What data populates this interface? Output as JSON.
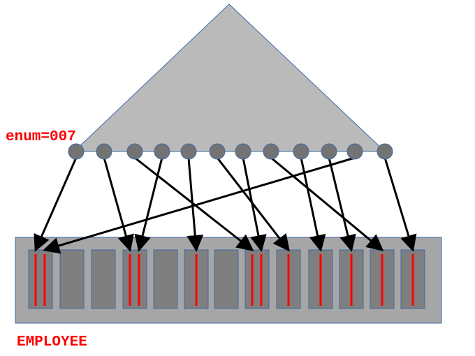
{
  "labels": {
    "key_label": "enum=007",
    "table_label": "EMPLOYEE"
  },
  "leaf_count": 12,
  "page_count": 13,
  "pages": [
    {
      "entries": 2
    },
    {
      "entries": 0
    },
    {
      "entries": 0
    },
    {
      "entries": 2
    },
    {
      "entries": 0
    },
    {
      "entries": 1
    },
    {
      "entries": 0
    },
    {
      "entries": 2
    },
    {
      "entries": 1
    },
    {
      "entries": 1
    },
    {
      "entries": 1
    },
    {
      "entries": 1
    },
    {
      "entries": 1
    }
  ],
  "pointers": [
    {
      "from_leaf": 0,
      "to_page": 0,
      "mark": 0
    },
    {
      "from_leaf": 1,
      "to_page": 3,
      "mark": 0
    },
    {
      "from_leaf": 2,
      "to_page": 7,
      "mark": 0
    },
    {
      "from_leaf": 3,
      "to_page": 3,
      "mark": 1
    },
    {
      "from_leaf": 4,
      "to_page": 5,
      "mark": 0
    },
    {
      "from_leaf": 5,
      "to_page": 8,
      "mark": 0
    },
    {
      "from_leaf": 6,
      "to_page": 7,
      "mark": 1
    },
    {
      "from_leaf": 7,
      "to_page": 11,
      "mark": 0
    },
    {
      "from_leaf": 8,
      "to_page": 9,
      "mark": 0
    },
    {
      "from_leaf": 9,
      "to_page": 10,
      "mark": 0
    },
    {
      "from_leaf": 10,
      "to_page": 0,
      "mark": 1
    },
    {
      "from_leaf": 11,
      "to_page": 12,
      "mark": 0
    }
  ],
  "colors": {
    "tree_fill": "#bababa",
    "tree_stroke": "#3e6aa8",
    "leaf_fill": "#737373",
    "table_fill": "#a6a6a6",
    "page_fill": "#7f7f7f",
    "entry_mark": "#ff0000",
    "arrow": "#000000"
  }
}
